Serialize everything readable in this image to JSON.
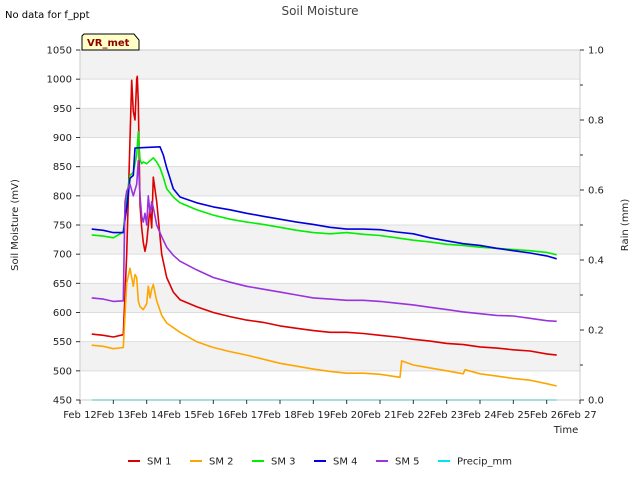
{
  "note": "No data for f_ppt",
  "badge": "VR_met",
  "chart_data": {
    "type": "line",
    "title": "Soil Moisture",
    "xlabel": "Time",
    "ylabel": "Soil Moisture (mV)",
    "y2label": "Rain (mm)",
    "xlim": [
      12,
      27
    ],
    "ylim": [
      450,
      1050
    ],
    "y2lim": [
      0.0,
      1.0
    ],
    "x_ticks": [
      12,
      13,
      14,
      15,
      16,
      17,
      18,
      19,
      20,
      21,
      22,
      23,
      24,
      25,
      26,
      27
    ],
    "x_tick_labels": [
      "Feb 12",
      "Feb 13",
      "Feb 14",
      "Feb 15",
      "Feb 16",
      "Feb 17",
      "Feb 18",
      "Feb 19",
      "Feb 20",
      "Feb 21",
      "Feb 22",
      "Feb 23",
      "Feb 24",
      "Feb 25",
      "Feb 26",
      "Feb 27"
    ],
    "y_ticks": [
      450,
      500,
      550,
      600,
      650,
      700,
      750,
      800,
      850,
      900,
      950,
      1000,
      1050
    ],
    "y_tick_labels": [
      "450",
      "500",
      "550",
      "600",
      "650",
      "700",
      "750",
      "800",
      "850",
      "900",
      "950",
      "1000",
      "1050"
    ],
    "y2_ticks": [
      0.0,
      0.2,
      0.4,
      0.6,
      0.8,
      1.0
    ],
    "y2_tick_labels": [
      "0.0",
      "0.2",
      "0.4",
      "0.6",
      "0.8",
      "1.0"
    ],
    "series": [
      {
        "name": "SM 1",
        "color": "#dd0000",
        "axis": "left",
        "x": [
          12.35,
          12.7,
          13.0,
          13.3,
          13.4,
          13.55,
          13.6,
          13.65,
          13.7,
          13.72,
          13.75,
          13.8,
          13.85,
          13.9,
          13.95,
          14.0,
          14.1,
          14.15,
          14.2,
          14.3,
          14.45,
          14.6,
          14.8,
          15.0,
          15.5,
          16.0,
          16.5,
          17.0,
          17.5,
          18.0,
          18.5,
          19.0,
          19.5,
          20.0,
          20.5,
          21.0,
          21.5,
          22.0,
          22.5,
          23.0,
          23.5,
          24.0,
          24.5,
          25.0,
          25.5,
          26.0,
          26.3
        ],
        "y": [
          563,
          561,
          558,
          562,
          700,
          998,
          945,
          930,
          1000,
          1005,
          960,
          785,
          745,
          720,
          705,
          720,
          780,
          745,
          832,
          790,
          700,
          660,
          635,
          622,
          610,
          600,
          593,
          587,
          583,
          577,
          573,
          569,
          566,
          566,
          564,
          561,
          558,
          554,
          551,
          547,
          545,
          541,
          539,
          536,
          534,
          529,
          527
        ]
      },
      {
        "name": "SM 2",
        "color": "#ffa500",
        "axis": "left",
        "x": [
          12.35,
          12.7,
          13.0,
          13.3,
          13.4,
          13.5,
          13.55,
          13.6,
          13.65,
          13.7,
          13.75,
          13.8,
          13.9,
          14.0,
          14.05,
          14.1,
          14.15,
          14.2,
          14.3,
          14.45,
          14.6,
          15.0,
          15.5,
          16.0,
          16.5,
          17.0,
          17.5,
          18.0,
          18.5,
          19.0,
          19.5,
          20.0,
          20.5,
          21.0,
          21.6,
          21.65,
          22.0,
          22.5,
          23.0,
          23.5,
          23.55,
          24.0,
          24.5,
          25.0,
          25.5,
          26.0,
          26.3
        ],
        "y": [
          544,
          542,
          538,
          540,
          650,
          676,
          660,
          645,
          665,
          660,
          620,
          610,
          605,
          615,
          645,
          625,
          640,
          648,
          620,
          595,
          582,
          566,
          550,
          540,
          533,
          527,
          520,
          513,
          508,
          503,
          499,
          496,
          496,
          494,
          489,
          517,
          510,
          505,
          500,
          495,
          502,
          495,
          491,
          487,
          484,
          478,
          474
        ]
      },
      {
        "name": "SM 3",
        "color": "#00ee00",
        "axis": "left",
        "x": [
          12.35,
          12.7,
          13.0,
          13.3,
          13.4,
          13.5,
          13.6,
          13.7,
          13.75,
          13.8,
          13.85,
          13.9,
          14.0,
          14.1,
          14.2,
          14.3,
          14.4,
          14.5,
          14.6,
          14.8,
          15.0,
          15.5,
          16.0,
          16.5,
          17.0,
          17.5,
          18.0,
          18.5,
          19.0,
          19.5,
          20.0,
          20.5,
          21.0,
          21.5,
          22.0,
          22.5,
          23.0,
          23.5,
          24.0,
          24.5,
          25.0,
          25.5,
          26.0,
          26.3
        ],
        "y": [
          733,
          731,
          728,
          738,
          800,
          835,
          840,
          870,
          910,
          862,
          855,
          858,
          855,
          860,
          865,
          858,
          848,
          832,
          812,
          798,
          788,
          776,
          767,
          760,
          755,
          751,
          746,
          741,
          737,
          735,
          737,
          734,
          732,
          728,
          724,
          721,
          717,
          715,
          712,
          710,
          708,
          706,
          703,
          699
        ]
      },
      {
        "name": "SM 4",
        "color": "#0000dd",
        "axis": "left",
        "x": [
          12.35,
          12.7,
          13.0,
          13.3,
          13.4,
          13.5,
          13.6,
          13.65,
          14.0,
          14.4,
          14.5,
          14.6,
          14.8,
          15.0,
          15.5,
          16.0,
          16.5,
          17.0,
          17.5,
          18.0,
          18.5,
          19.0,
          19.5,
          20.0,
          20.5,
          21.0,
          21.5,
          22.0,
          22.5,
          23.0,
          23.5,
          24.0,
          24.5,
          25.0,
          25.5,
          26.0,
          26.3
        ],
        "y": [
          743,
          741,
          737,
          737,
          780,
          830,
          835,
          882,
          883,
          884,
          870,
          848,
          812,
          798,
          788,
          781,
          776,
          770,
          765,
          760,
          755,
          751,
          746,
          743,
          743,
          742,
          738,
          735,
          728,
          723,
          718,
          715,
          710,
          706,
          702,
          697,
          692
        ]
      },
      {
        "name": "SM 5",
        "color": "#9933dd",
        "axis": "left",
        "x": [
          12.35,
          12.7,
          13.0,
          13.3,
          13.35,
          13.4,
          13.5,
          13.6,
          13.7,
          13.75,
          13.8,
          13.85,
          13.9,
          13.95,
          14.0,
          14.05,
          14.1,
          14.15,
          14.2,
          14.3,
          14.45,
          14.6,
          14.8,
          15.0,
          15.5,
          16.0,
          16.5,
          17.0,
          17.5,
          18.0,
          18.5,
          19.0,
          19.5,
          20.0,
          20.5,
          21.0,
          21.5,
          22.0,
          22.5,
          23.0,
          23.5,
          24.0,
          24.5,
          25.0,
          25.5,
          26.0,
          26.3
        ],
        "y": [
          625,
          623,
          619,
          620,
          790,
          808,
          820,
          800,
          820,
          860,
          800,
          765,
          755,
          770,
          750,
          800,
          770,
          790,
          780,
          750,
          730,
          712,
          698,
          688,
          673,
          660,
          652,
          645,
          640,
          635,
          630,
          625,
          623,
          621,
          621,
          619,
          616,
          613,
          609,
          605,
          601,
          598,
          595,
          594,
          590,
          586,
          585
        ]
      },
      {
        "name": "Precip_mm",
        "color": "#00e5ee",
        "axis": "right",
        "x": [
          12.35,
          26.3
        ],
        "y": [
          0.0,
          0.0
        ]
      }
    ]
  }
}
